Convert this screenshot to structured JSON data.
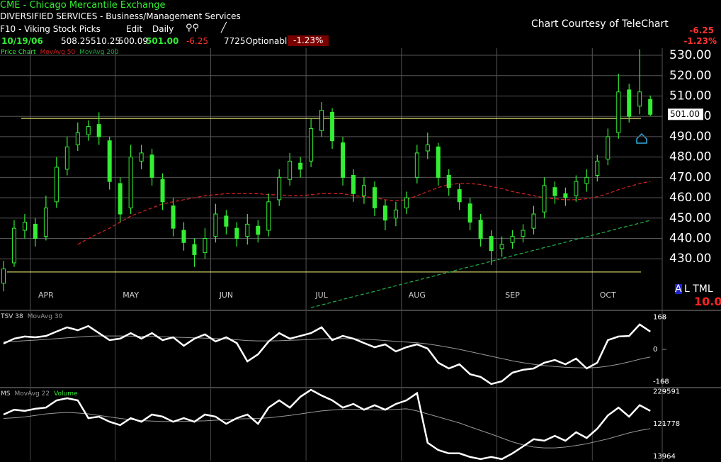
{
  "header": {
    "symbol": "CME - Chicago Mercantile Exchange",
    "sector": "DIVERSIFIED SERVICES - Business/Management Services",
    "watchlist": "F10 - Viking Stock Picks",
    "edit": "Edit",
    "period": "Daily",
    "courtesy": "Chart Courtesy of TeleChart"
  },
  "quote": {
    "date": "10/19/06",
    "open": "508.25",
    "high": "510.25",
    "low": "500.09",
    "close": "501.00",
    "change": "-6.25",
    "volume": "7725",
    "optionable": "Optionable",
    "change_pct": "-1.23%"
  },
  "status": {
    "highlight": "A",
    "letters": "L TML",
    "value": "10.0"
  },
  "chart_data": [
    {
      "type": "candlestick",
      "title": "Price Chart",
      "categories": [
        null,
        null,
        null,
        null,
        "APR",
        null,
        null,
        null,
        null,
        null,
        null,
        null,
        "MAY",
        null,
        null,
        null,
        null,
        null,
        null,
        null,
        null,
        "JUN",
        null,
        null,
        null,
        null,
        null,
        null,
        null,
        null,
        "JUL",
        null,
        null,
        null,
        null,
        null,
        null,
        null,
        null,
        "AUG",
        null,
        null,
        null,
        null,
        null,
        null,
        null,
        null,
        "SEP",
        null,
        null,
        null,
        null,
        null,
        null,
        null,
        null,
        "OCT",
        null,
        null,
        null,
        null
      ],
      "open": [
        418,
        428,
        444,
        447,
        441,
        458,
        474,
        486,
        491,
        496,
        488,
        467,
        455,
        478,
        481,
        469,
        456,
        444,
        437,
        433,
        441,
        451,
        445,
        441,
        446,
        444,
        459,
        469,
        477,
        478,
        493,
        502,
        487,
        471,
        461,
        465,
        456,
        450,
        455,
        470,
        483,
        485,
        471,
        464,
        457,
        449,
        441,
        435,
        438,
        441,
        445,
        453,
        465,
        462,
        461,
        467,
        471,
        479,
        492,
        513,
        505,
        508.25
      ],
      "high": [
        429,
        449,
        452,
        450,
        461,
        480,
        490,
        497,
        498,
        502,
        490,
        470,
        486,
        486,
        484,
        472,
        460,
        448,
        440,
        445,
        457,
        454,
        448,
        452,
        449,
        462,
        474,
        482,
        480,
        499,
        507,
        504,
        490,
        474,
        470,
        468,
        459,
        458,
        463,
        486,
        492,
        487,
        474,
        467,
        460,
        452,
        444,
        441,
        444,
        447,
        456,
        470,
        468,
        465,
        471,
        474,
        481,
        494,
        521,
        516,
        533,
        510.25
      ],
      "low": [
        414,
        426,
        440,
        436,
        439,
        455,
        471,
        483,
        488,
        486,
        464,
        448,
        452,
        474,
        466,
        454,
        441,
        434,
        426,
        430,
        438,
        442,
        436,
        437,
        438,
        441,
        456,
        466,
        470,
        475,
        490,
        484,
        466,
        458,
        457,
        451,
        444,
        446,
        452,
        467,
        479,
        466,
        461,
        454,
        444,
        436,
        427,
        431,
        435,
        438,
        442,
        450,
        457,
        456,
        458,
        463,
        468,
        476,
        489,
        497,
        501,
        500.09
      ],
      "close": [
        425,
        445,
        448,
        440,
        455,
        475,
        485,
        492,
        495,
        490,
        468,
        452,
        480,
        482,
        470,
        458,
        445,
        438,
        432,
        440,
        452,
        446,
        440,
        447,
        442,
        458,
        470,
        478,
        474,
        494,
        503,
        488,
        470,
        462,
        466,
        455,
        449,
        454,
        460,
        482,
        486,
        470,
        465,
        458,
        448,
        440,
        434,
        437,
        441,
        444,
        452,
        466,
        461,
        460,
        468,
        470,
        478,
        490,
        512,
        500,
        512,
        501
      ],
      "color": "#33ee33",
      "series": [
        {
          "name": "MovAvg 50",
          "color": "#cc2222",
          "values": [
            null,
            null,
            null,
            null,
            null,
            null,
            null,
            437,
            440,
            442.5,
            445,
            448,
            451,
            453,
            455,
            457,
            458,
            459,
            460,
            461,
            461.5,
            462,
            462,
            462,
            462,
            461.5,
            461.5,
            461,
            461,
            461.5,
            462,
            462,
            462,
            461,
            460.5,
            460,
            459,
            458.5,
            459,
            461,
            463,
            465,
            466.5,
            467,
            467,
            466.5,
            465.5,
            464.5,
            463,
            462,
            461,
            460,
            459.5,
            459,
            459,
            459.5,
            460.5,
            462,
            464,
            465.5,
            467,
            468
          ]
        },
        {
          "name": "MovAvg 200",
          "color": "#22aa44",
          "values": [
            null,
            null,
            null,
            null,
            null,
            null,
            null,
            null,
            null,
            null,
            null,
            null,
            null,
            null,
            null,
            null,
            null,
            null,
            null,
            null,
            null,
            null,
            null,
            null,
            null,
            null,
            null,
            null,
            null,
            406,
            407.3,
            408.7,
            410,
            411.4,
            412.7,
            414,
            415.4,
            416.7,
            418.1,
            419.4,
            420.7,
            422.1,
            423.4,
            424.8,
            426.1,
            427.4,
            428.8,
            430.1,
            431.5,
            432.8,
            434.1,
            435.5,
            436.8,
            438.2,
            439.5,
            440.8,
            442.2,
            443.5,
            444.9,
            446.2,
            447.5,
            448.9
          ]
        }
      ],
      "hlines": [
        499,
        423.5
      ],
      "hline_color": "#ffff80",
      "ylim": [
        405,
        533.5
      ],
      "yticks": [
        {
          "value": 430,
          "label": "430.00"
        },
        {
          "value": 440,
          "label": "440.00"
        },
        {
          "value": 450,
          "label": "450.00"
        },
        {
          "value": 460,
          "label": "460.00"
        },
        {
          "value": 470,
          "label": "470.00"
        },
        {
          "value": 480,
          "label": "480.00"
        },
        {
          "value": 490,
          "label": "490.00"
        },
        {
          "value": 500,
          "label": "500.00"
        },
        {
          "value": 510,
          "label": "510.00"
        },
        {
          "value": 520,
          "label": "520.00"
        },
        {
          "value": 530,
          "label": "530.00"
        }
      ],
      "grid": true
    },
    {
      "type": "line",
      "series": [
        {
          "name": "TSV 38",
          "color": "#ffffff",
          "values": [
            30,
            56,
            67,
            63,
            70,
            93,
            115,
            100,
            122,
            85,
            48,
            56,
            85,
            56,
            85,
            48,
            63,
            19,
            56,
            78,
            41,
            63,
            33,
            -63,
            -26,
            41,
            85,
            56,
            70,
            85,
            115,
            48,
            70,
            56,
            33,
            11,
            26,
            -11,
            11,
            26,
            4,
            -70,
            -100,
            -78,
            -130,
            -144,
            -181,
            -167,
            -122,
            -107,
            -100,
            -70,
            -56,
            -78,
            -48,
            -100,
            -70,
            48,
            67,
            70,
            130,
            93
          ]
        },
        {
          "name": "MovAvg 30",
          "color": "#999999",
          "values": [
            40,
            42,
            45,
            48,
            52,
            56,
            60,
            64,
            68,
            70,
            70,
            70,
            69,
            68,
            67,
            66,
            64,
            62,
            60,
            58,
            56,
            54,
            50,
            46,
            44,
            44,
            45,
            47,
            49,
            52,
            55,
            56,
            56,
            55,
            53,
            50,
            46,
            42,
            38,
            34,
            28,
            20,
            10,
            0,
            -12,
            -24,
            -36,
            -48,
            -60,
            -70,
            -78,
            -85,
            -90,
            -94,
            -96,
            -97,
            -95,
            -88,
            -78,
            -66,
            -52,
            -40
          ]
        }
      ],
      "ylim": [
        -200,
        200
      ],
      "yticks": [
        -168,
        0,
        168
      ]
    },
    {
      "type": "line",
      "series": [
        {
          "name": "MS",
          "color": "#ffffff",
          "values": [
            153000,
            169000,
            165000,
            172000,
            176000,
            200000,
            207000,
            200000,
            141000,
            146000,
            129000,
            118000,
            141000,
            129000,
            153000,
            146000,
            129000,
            141000,
            129000,
            153000,
            146000,
            122000,
            141000,
            153000,
            122000,
            176000,
            200000,
            176000,
            212000,
            235000,
            216000,
            200000,
            176000,
            188000,
            169000,
            184000,
            169000,
            188000,
            200000,
            224000,
            59000,
            35000,
            24000,
            24000,
            12000,
            5000,
            12000,
            5000,
            24000,
            47000,
            71000,
            66000,
            82000,
            66000,
            94000,
            75000,
            106000,
            150000,
            176000,
            146000,
            184000,
            165000
          ]
        },
        {
          "name": "MovAvg 22",
          "color": "#999999",
          "values": [
            140000,
            142000,
            145000,
            150000,
            155000,
            158000,
            160000,
            158000,
            155000,
            150000,
            145000,
            140000,
            136000,
            133000,
            131000,
            130000,
            130000,
            130000,
            131000,
            132000,
            134000,
            136000,
            138000,
            139000,
            140000,
            142000,
            146000,
            150000,
            155000,
            160000,
            165000,
            168000,
            170000,
            170000,
            170000,
            168000,
            168000,
            170000,
            172000,
            165000,
            155000,
            145000,
            135000,
            125000,
            112000,
            100000,
            88000,
            75000,
            62000,
            52000,
            45000,
            42000,
            42000,
            45000,
            50000,
            56000,
            64000,
            72000,
            82000,
            92000,
            100000,
            106000
          ]
        }
      ],
      "extra_legend": "Volume",
      "ylim": [
        0,
        240000
      ],
      "yticks": [
        13964,
        121778,
        229591
      ]
    }
  ]
}
